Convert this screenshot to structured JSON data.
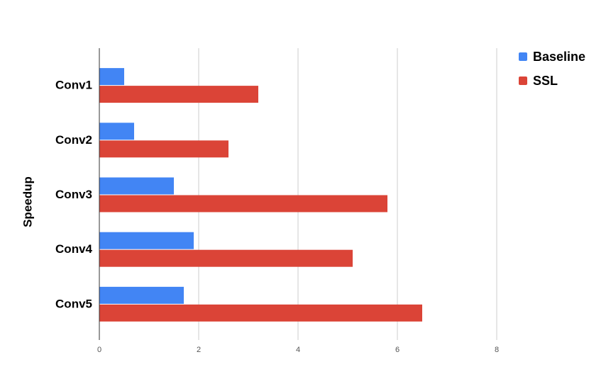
{
  "chart_data": {
    "type": "hbar",
    "axis_label": "Speedup",
    "categories": [
      "Conv1",
      "Conv2",
      "Conv3",
      "Conv4",
      "Conv5"
    ],
    "series": [
      {
        "name": "Baseline",
        "color": "#4285f4",
        "values": [
          0.5,
          0.7,
          1.5,
          1.9,
          1.7
        ]
      },
      {
        "name": "SSL",
        "color": "#db4437",
        "values": [
          3.2,
          2.6,
          5.8,
          5.1,
          6.5
        ]
      }
    ],
    "xlim": [
      0,
      8
    ],
    "xticks": [
      0,
      2,
      4,
      6,
      8
    ],
    "grid": true,
    "legend": "top-right"
  }
}
